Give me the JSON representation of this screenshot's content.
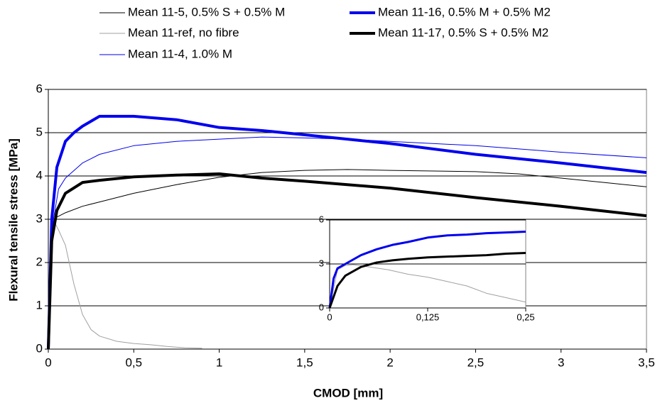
{
  "chart_data": [
    {
      "type": "line",
      "xlabel": "CMOD [mm]",
      "ylabel": "Flexural tensile stress [MPa]",
      "xlim": [
        0,
        3.5
      ],
      "ylim": [
        0,
        6
      ],
      "xticks": [
        0,
        {
          "value": 0.5,
          "label": "0,5"
        },
        1,
        {
          "value": 1.5,
          "label": "1,5"
        },
        2,
        {
          "value": 2.5,
          "label": "2,5"
        },
        3,
        {
          "value": 3.5,
          "label": "3,5"
        }
      ],
      "yticks": [
        0,
        1,
        2,
        3,
        4,
        5,
        6
      ],
      "grid": true,
      "legend": "top",
      "series": [
        {
          "name": "Mean 11-5, 0.5% S + 0.5% M",
          "color": "#000000",
          "width": 1,
          "x": [
            0,
            0.02,
            0.05,
            0.1,
            0.2,
            0.3,
            0.5,
            0.75,
            1,
            1.25,
            1.5,
            1.75,
            2,
            2.5,
            2.75,
            3,
            3.25,
            3.5
          ],
          "values": [
            0,
            2.5,
            3.05,
            3.15,
            3.3,
            3.4,
            3.6,
            3.8,
            3.97,
            4.08,
            4.13,
            4.15,
            4.13,
            4.1,
            4.05,
            3.95,
            3.85,
            3.75
          ]
        },
        {
          "name": "Mean 11-ref, no fibre",
          "color": "#a0a0a0",
          "width": 1,
          "x": [
            0,
            0.02,
            0.04,
            0.06,
            0.1,
            0.15,
            0.2,
            0.25,
            0.3,
            0.4,
            0.5,
            0.6,
            0.7,
            0.8,
            0.9
          ],
          "values": [
            0,
            2.5,
            2.9,
            2.75,
            2.4,
            1.5,
            0.8,
            0.45,
            0.3,
            0.18,
            0.13,
            0.1,
            0.06,
            0.03,
            0.02
          ]
        },
        {
          "name": "Mean 11-4, 1.0% M",
          "color": "#0000ee",
          "width": 1,
          "x": [
            0,
            0.03,
            0.06,
            0.1,
            0.2,
            0.3,
            0.5,
            0.75,
            1,
            1.25,
            1.5,
            1.75,
            2,
            2.5,
            3,
            3.5
          ],
          "values": [
            0,
            3,
            3.7,
            3.95,
            4.3,
            4.5,
            4.7,
            4.8,
            4.85,
            4.9,
            4.88,
            4.85,
            4.8,
            4.7,
            4.55,
            4.42
          ]
        },
        {
          "name": "Mean 11-16, 0.5% M + 0.5% M2",
          "color": "#0000ee",
          "width": 4,
          "x": [
            0,
            0.02,
            0.05,
            0.1,
            0.15,
            0.2,
            0.3,
            0.5,
            0.75,
            1,
            1.25,
            1.5,
            1.75,
            2,
            2.5,
            3,
            3.5
          ],
          "values": [
            0,
            3,
            4.2,
            4.8,
            5.0,
            5.15,
            5.38,
            5.38,
            5.3,
            5.12,
            5.05,
            4.95,
            4.85,
            4.75,
            4.5,
            4.3,
            4.08
          ]
        },
        {
          "name": "Mean 11-17, 0.5% S + 0.5% M2",
          "color": "#000000",
          "width": 4,
          "x": [
            0,
            0.02,
            0.05,
            0.1,
            0.2,
            0.3,
            0.5,
            0.75,
            1,
            1.25,
            1.5,
            1.75,
            2,
            2.5,
            3,
            3.5
          ],
          "values": [
            0,
            2.5,
            3.2,
            3.6,
            3.85,
            3.9,
            3.98,
            4.02,
            4.05,
            3.95,
            3.88,
            3.8,
            3.72,
            3.5,
            3.3,
            3.08
          ]
        }
      ]
    },
    {
      "type": "line",
      "xlim": [
        0,
        0.25
      ],
      "ylim": [
        0,
        6
      ],
      "xticks": [
        0,
        {
          "value": 0.125,
          "label": "0,125"
        },
        {
          "value": 0.25,
          "label": "0,25"
        }
      ],
      "yticks": [
        0,
        3,
        6
      ],
      "grid": true,
      "series": [
        {
          "color": "#a0a0a0",
          "width": 1,
          "x": [
            0,
            0.01,
            0.02,
            0.03,
            0.05,
            0.075,
            0.1,
            0.125,
            0.15,
            0.175,
            0.2,
            0.225,
            0.25
          ],
          "values": [
            0,
            2.6,
            2.9,
            2.95,
            2.8,
            2.6,
            2.3,
            2.1,
            1.8,
            1.5,
            1.0,
            0.7,
            0.4
          ]
        },
        {
          "color": "#0000ee",
          "width": 3,
          "x": [
            0,
            0.005,
            0.01,
            0.02,
            0.04,
            0.06,
            0.08,
            0.1,
            0.125,
            0.15,
            0.175,
            0.2,
            0.225,
            0.25
          ],
          "values": [
            0,
            2.0,
            2.7,
            3.0,
            3.6,
            4.0,
            4.3,
            4.5,
            4.8,
            4.95,
            5.0,
            5.1,
            5.15,
            5.2
          ]
        },
        {
          "color": "#000000",
          "width": 3,
          "x": [
            0,
            0.01,
            0.02,
            0.04,
            0.06,
            0.08,
            0.1,
            0.125,
            0.15,
            0.175,
            0.2,
            0.225,
            0.25
          ],
          "values": [
            0,
            1.5,
            2.2,
            2.8,
            3.1,
            3.25,
            3.35,
            3.45,
            3.5,
            3.55,
            3.6,
            3.7,
            3.75
          ]
        }
      ]
    }
  ]
}
